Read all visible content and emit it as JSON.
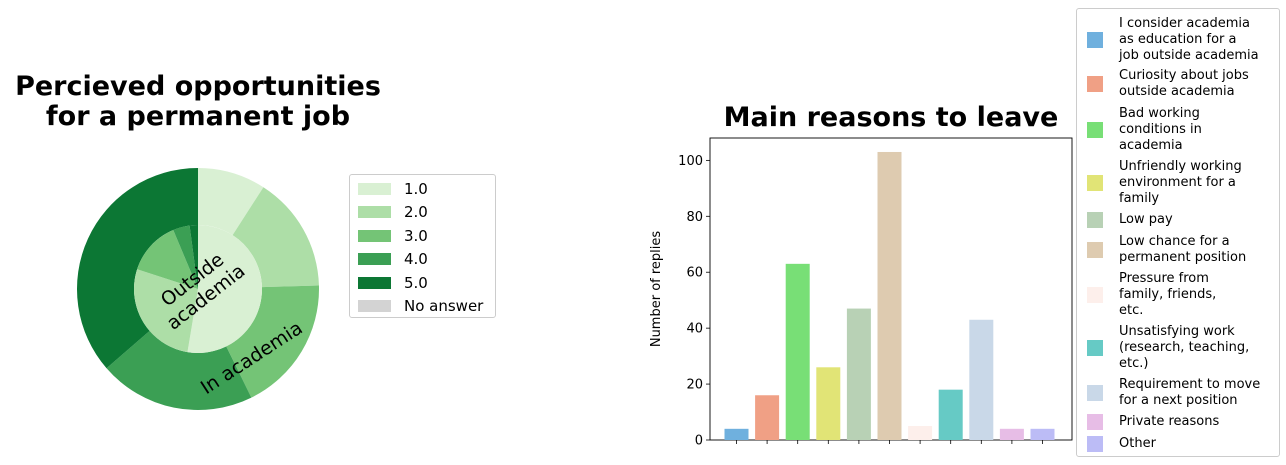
{
  "chart_data": [
    {
      "type": "pie",
      "title": "Percieved opportunities\nfor a permanent job",
      "ring_labels": {
        "inner": "Outside\nacademia",
        "outer": "In academia"
      },
      "categories": [
        "1.0",
        "2.0",
        "3.0",
        "4.0",
        "5.0",
        "No answer"
      ],
      "colors": [
        "#d9f0d3",
        "#addea7",
        "#74c476",
        "#3b9f54",
        "#0c7734",
        "#d3d3d3"
      ],
      "series": [
        {
          "name": "In academia",
          "values": [
            10,
            17,
            20,
            23,
            40,
            0
          ]
        },
        {
          "name": "Outside academia",
          "values": [
            50,
            26,
            13,
            4,
            2,
            0
          ]
        }
      ],
      "legend": "right"
    },
    {
      "type": "bar",
      "title": "Main reasons to leave",
      "xlabel": "",
      "ylabel": "Number of replies",
      "ylim": [
        0,
        108
      ],
      "yticks": [
        0,
        20,
        40,
        60,
        80,
        100
      ],
      "categories": [
        "I consider academia as education for a job outside academia",
        "Curiosity about jobs outside academia",
        "Bad working conditions in academia",
        "Unfriendly working environment for a family",
        "Low pay",
        "Low chance for a permanent position",
        "Pressure from family, friends, etc.",
        "Unsatisfying work (research, teaching, etc.)",
        "Requirement to move for a next position",
        "Private reasons",
        "Other"
      ],
      "legend_labels": [
        "I consider academia\nas education for a\njob outside academia",
        "Curiosity about jobs\noutside academia",
        "Bad working\nconditions in\nacademia",
        "Unfriendly working\nenvironment for a\nfamily",
        "Low pay",
        "Low chance for a\npermanent position",
        "Pressure from\nfamily, friends,\netc.",
        "Unsatisfying work\n(research, teaching,\netc.)",
        "Requirement to move\nfor a next position",
        "Private reasons",
        "Other"
      ],
      "values": [
        4,
        16,
        63,
        26,
        47,
        103,
        5,
        18,
        43,
        4,
        4
      ],
      "colors": [
        "#6fb0de",
        "#f0a085",
        "#78df76",
        "#e1e476",
        "#b8d1b5",
        "#decbb0",
        "#fdefeb",
        "#66cac5",
        "#c9d8e8",
        "#e7bde6",
        "#bcbcf6"
      ],
      "legend": "right"
    }
  ]
}
